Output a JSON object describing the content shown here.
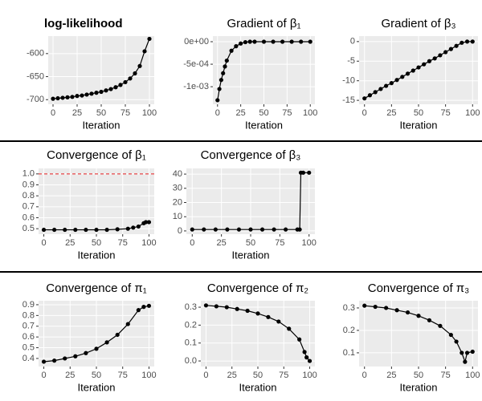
{
  "chart_data": [
    {
      "type": "line",
      "title": "log-likelihood",
      "title_weight": "bold",
      "title_align": "left",
      "x_label": "Iteration",
      "x": [
        0,
        5,
        10,
        15,
        20,
        25,
        30,
        35,
        40,
        45,
        50,
        55,
        60,
        65,
        70,
        75,
        80,
        85,
        90,
        95,
        100
      ],
      "values": [
        -698,
        -697,
        -696,
        -695,
        -694,
        -692,
        -691,
        -689,
        -687,
        -685,
        -683,
        -680,
        -677,
        -673,
        -668,
        -662,
        -654,
        -643,
        -627,
        -595,
        -568
      ],
      "xlim": [
        -5,
        105
      ],
      "xticks": [
        0,
        25,
        50,
        75,
        100
      ],
      "ylim": [
        -710,
        -562
      ],
      "yticks": [
        -700,
        -650,
        -600
      ],
      "color": "#000000"
    },
    {
      "type": "line",
      "title": "Gradient of β₁",
      "x_label": "Iteration",
      "x": [
        0,
        2,
        4,
        6,
        8,
        10,
        15,
        20,
        25,
        30,
        35,
        40,
        50,
        60,
        70,
        80,
        90,
        100
      ],
      "values": [
        -0.0013,
        -0.00105,
        -0.00085,
        -0.0007,
        -0.00055,
        -0.00042,
        -0.0002,
        -0.0001,
        -4e-05,
        -1e-05,
        0,
        0,
        0,
        0,
        0,
        0,
        0,
        0
      ],
      "xlim": [
        -5,
        105
      ],
      "xticks": [
        0,
        25,
        50,
        75,
        100
      ],
      "ylim": [
        -0.00139,
        0.000125
      ],
      "yticks": [
        {
          "value": -0.001,
          "label": "-1e-03"
        },
        {
          "value": -0.0005,
          "label": "-5e-04"
        },
        {
          "value": 0,
          "label": "0e+00"
        }
      ],
      "color": "#000000"
    },
    {
      "type": "line",
      "title": "Gradient of β₃",
      "x_label": "Iteration",
      "x": [
        0,
        5,
        10,
        15,
        20,
        25,
        30,
        35,
        40,
        45,
        50,
        55,
        60,
        65,
        70,
        75,
        80,
        85,
        90,
        95,
        100
      ],
      "values": [
        -14.5,
        -13.7,
        -12.9,
        -12.1,
        -11.3,
        -10.6,
        -9.8,
        -9.0,
        -8.2,
        -7.4,
        -6.6,
        -5.8,
        -5.0,
        -4.3,
        -3.5,
        -2.7,
        -1.9,
        -1.1,
        -0.3,
        0,
        0
      ],
      "xlim": [
        -5,
        105
      ],
      "xticks": [
        0,
        25,
        50,
        75,
        100
      ],
      "ylim": [
        -16,
        1.4
      ],
      "yticks": [
        -15,
        -10,
        -5,
        0
      ],
      "color": "#000000"
    },
    {
      "type": "line",
      "title": "Convergence of β₁",
      "x_label": "Iteration",
      "x": [
        0,
        10,
        20,
        30,
        40,
        50,
        60,
        70,
        80,
        85,
        90,
        95,
        97,
        100
      ],
      "values": [
        0.49,
        0.49,
        0.49,
        0.49,
        0.49,
        0.49,
        0.49,
        0.495,
        0.5,
        0.51,
        0.52,
        0.55,
        0.56,
        0.56
      ],
      "reference_line": {
        "value": 1,
        "color": "#e41a1c"
      },
      "xlim": [
        -5,
        105
      ],
      "xticks": [
        0,
        25,
        50,
        75,
        100
      ],
      "ylim": [
        0.45,
        1.05
      ],
      "yticks": [
        0.5,
        0.6,
        0.7,
        0.8,
        0.9,
        {
          "value": 1,
          "label": "1.0"
        }
      ],
      "color": "#000000"
    },
    {
      "type": "line",
      "title": "Convergence of β₃",
      "x_label": "Iteration",
      "x": [
        0,
        10,
        20,
        30,
        40,
        50,
        60,
        70,
        80,
        90,
        92,
        93,
        95,
        100
      ],
      "values": [
        1,
        1,
        1,
        1,
        1,
        1,
        1,
        1,
        1,
        1,
        1,
        41,
        41,
        41
      ],
      "xlim": [
        -5,
        105
      ],
      "xticks": [
        0,
        25,
        50,
        75,
        100
      ],
      "ylim": [
        -2.3,
        44
      ],
      "yticks": [
        0,
        10,
        20,
        30,
        40
      ],
      "color": "#000000"
    },
    {
      "type": "line",
      "title": "Convergence of π₁",
      "x_label": "Iteration",
      "x": [
        0,
        10,
        20,
        30,
        40,
        50,
        60,
        70,
        80,
        90,
        95,
        100
      ],
      "values": [
        0.37,
        0.38,
        0.4,
        0.42,
        0.45,
        0.49,
        0.55,
        0.62,
        0.72,
        0.85,
        0.88,
        0.89
      ],
      "xlim": [
        -5,
        105
      ],
      "xticks": [
        0,
        25,
        50,
        75,
        100
      ],
      "ylim": [
        0.325,
        0.937
      ],
      "yticks": [
        0.4,
        0.5,
        0.6,
        0.7,
        0.8,
        0.9
      ],
      "color": "#000000"
    },
    {
      "type": "line",
      "title": "Convergence of π₂",
      "x_label": "Iteration",
      "x": [
        0,
        10,
        20,
        30,
        40,
        50,
        60,
        70,
        80,
        90,
        95,
        97,
        100
      ],
      "values": [
        0.31,
        0.305,
        0.3,
        0.29,
        0.28,
        0.265,
        0.245,
        0.22,
        0.18,
        0.12,
        0.05,
        0.02,
        0
      ],
      "xlim": [
        -5,
        105
      ],
      "xticks": [
        0,
        25,
        50,
        75,
        100
      ],
      "ylim": [
        -0.031,
        0.336
      ],
      "yticks": [
        {
          "value": 0,
          "label": "0.0"
        },
        0.1,
        0.2,
        0.3
      ],
      "color": "#000000"
    },
    {
      "type": "line",
      "title": "Convergence of π₃",
      "x_label": "Iteration",
      "x": [
        0,
        10,
        20,
        30,
        40,
        50,
        60,
        70,
        80,
        85,
        90,
        93,
        95,
        100
      ],
      "values": [
        0.31,
        0.305,
        0.3,
        0.29,
        0.28,
        0.265,
        0.245,
        0.22,
        0.18,
        0.15,
        0.1,
        0.06,
        0.1,
        0.105
      ],
      "xlim": [
        -5,
        105
      ],
      "xticks": [
        0,
        25,
        50,
        75,
        100
      ],
      "ylim": [
        0.039,
        0.332
      ],
      "yticks": [
        0.1,
        0.2,
        0.3
      ],
      "color": "#000000"
    }
  ]
}
